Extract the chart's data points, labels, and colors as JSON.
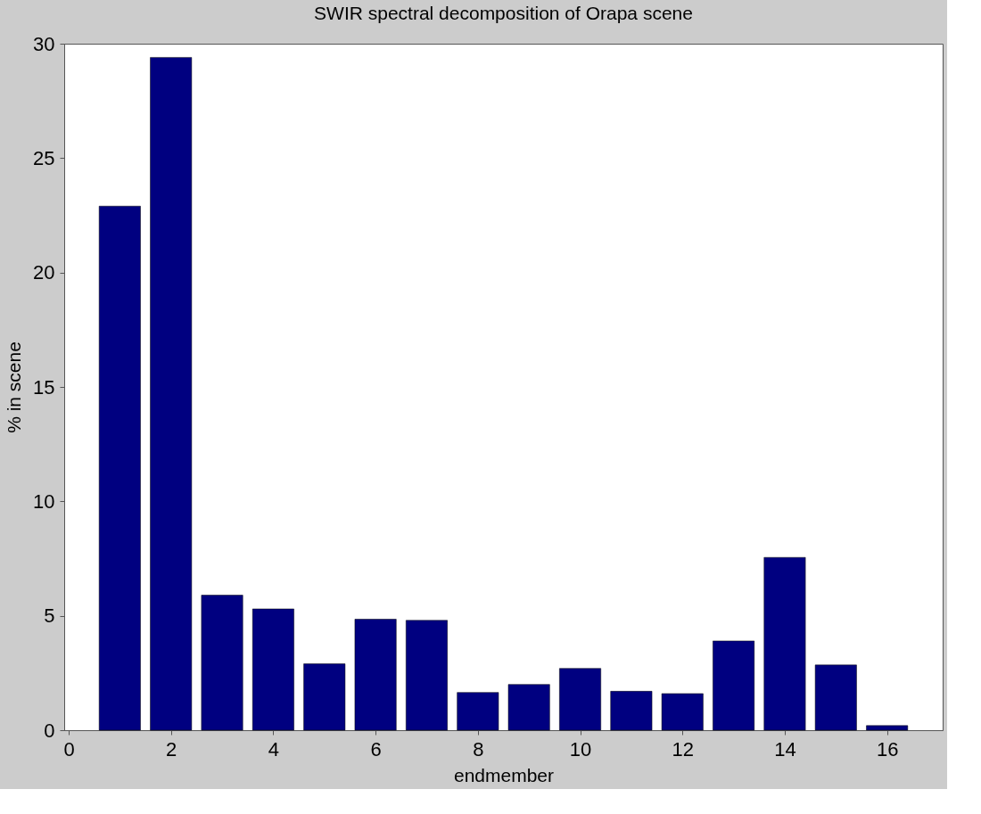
{
  "chart_data": {
    "type": "bar",
    "title": "SWIR spectral decomposition of Orapa scene",
    "xlabel": "endmember",
    "ylabel": "% in scene",
    "x": [
      1,
      2,
      3,
      4,
      5,
      6,
      7,
      8,
      9,
      10,
      11,
      12,
      13,
      14,
      15,
      16
    ],
    "values": [
      22.9,
      29.4,
      5.9,
      5.3,
      2.9,
      4.85,
      4.8,
      1.65,
      2.0,
      2.7,
      1.7,
      1.6,
      3.9,
      7.55,
      2.85,
      0.2
    ],
    "color": "#000080",
    "xlim": [
      0,
      17
    ],
    "xticks": [
      0,
      2,
      4,
      6,
      8,
      10,
      12,
      14,
      16
    ],
    "ylim": [
      0,
      30
    ],
    "yticks": [
      0,
      5,
      10,
      15,
      20,
      25,
      30
    ],
    "grid": false
  }
}
